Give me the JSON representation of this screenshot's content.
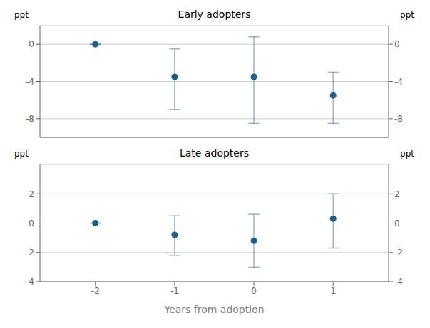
{
  "chart_data": [
    {
      "type": "scatter",
      "title": "Early adopters",
      "ylabel": "ppt",
      "y2label": "ppt",
      "x": [
        -2,
        -1,
        0,
        1
      ],
      "series": [
        {
          "color": "#1F5E8A",
          "values": [
            0,
            -3.5,
            -3.5,
            -5.5
          ],
          "ci_low": [
            0,
            -7.0,
            -8.5,
            -8.5
          ],
          "ci_high": [
            0,
            -0.5,
            0.8,
            -3.0
          ]
        }
      ],
      "xlim": [
        -2.7,
        1.7
      ],
      "xticks": [
        -2,
        -1,
        0,
        1
      ],
      "ylim": [
        -10,
        2
      ],
      "yticks": [
        0,
        -4,
        -8
      ],
      "y2lim": [
        -10,
        2
      ],
      "y2ticks": [
        0,
        -4,
        -8
      ],
      "grid": true,
      "tick_labels": "y"
    },
    {
      "type": "scatter",
      "title": "Late adopters",
      "ylabel": "ppt",
      "y2label": "ppt",
      "xlabel": "Years from adoption",
      "x": [
        -2,
        -1,
        0,
        1
      ],
      "series": [
        {
          "color": "#1F5E8A",
          "values": [
            0,
            -0.8,
            -1.2,
            0.3
          ],
          "ci_low": [
            0,
            -2.2,
            -3.0,
            -1.7
          ],
          "ci_high": [
            0,
            0.5,
            0.6,
            2.0
          ]
        }
      ],
      "xlim": [
        -2.7,
        1.7
      ],
      "xticks": [
        -2,
        -1,
        0,
        1
      ],
      "ylim": [
        -4,
        4
      ],
      "yticks": [
        2,
        0,
        -2,
        -4
      ],
      "y2lim": [
        -4,
        4
      ],
      "y2ticks": [
        2,
        0,
        -2,
        -4
      ],
      "grid": true
    }
  ]
}
